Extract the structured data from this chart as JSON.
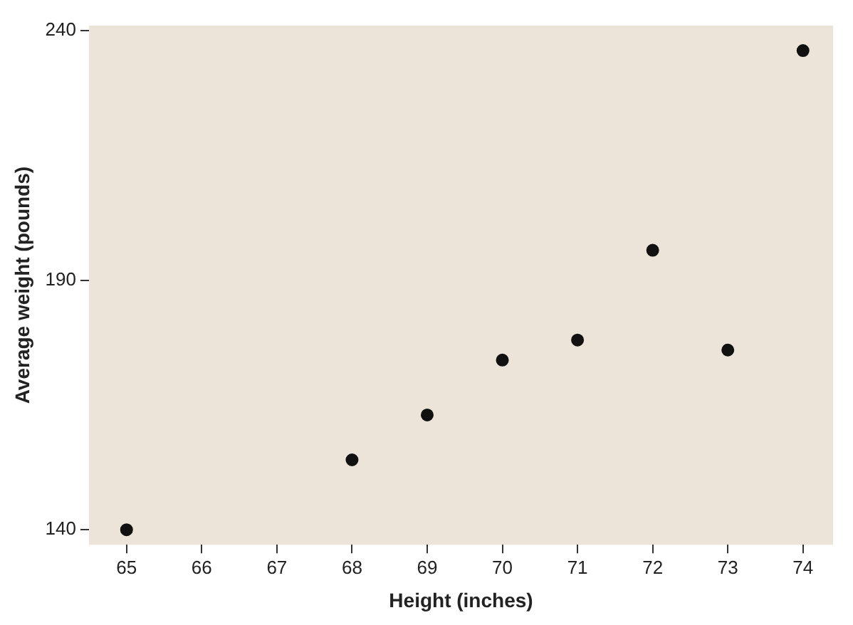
{
  "chart_data": {
    "type": "scatter",
    "xlabel": "Height (inches)",
    "ylabel": "Average weight (pounds)",
    "x": [
      65,
      68,
      69,
      70,
      71,
      72,
      73,
      74
    ],
    "values": [
      140,
      154,
      163,
      174,
      178,
      196,
      176,
      236
    ],
    "color": "#111111",
    "marker": "circle",
    "xlim": [
      64.5,
      74.4
    ],
    "ylim": [
      137,
      241
    ],
    "xticks": [
      65,
      66,
      67,
      68,
      69,
      70,
      71,
      72,
      73,
      74
    ],
    "yticks": [
      140,
      190,
      240
    ],
    "grid": false,
    "legend": false
  }
}
